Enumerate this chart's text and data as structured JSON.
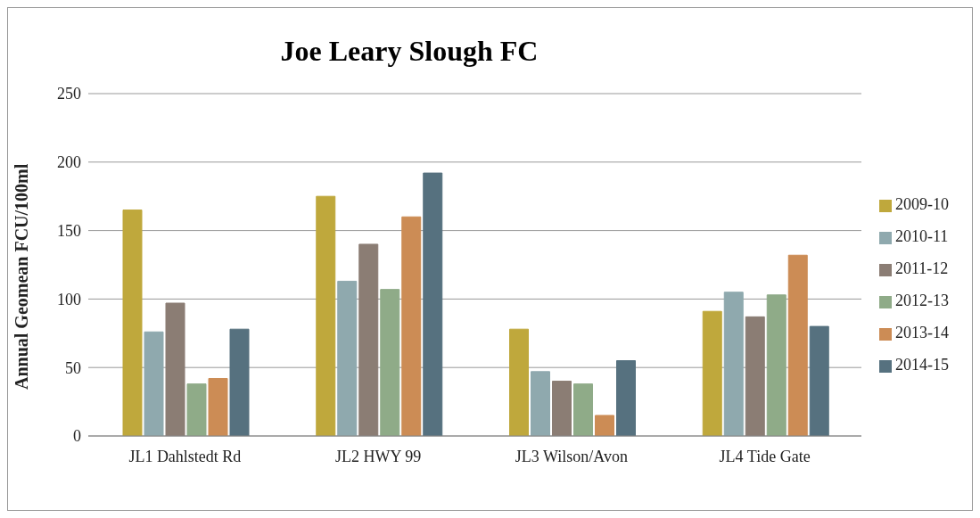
{
  "chart_data": {
    "type": "bar",
    "title": "Joe Leary Slough FC",
    "ylabel": "Annual Geomean FCU/100ml",
    "categories": [
      "JL1 Dahlstedt Rd",
      "JL2 HWY 99",
      "JL3 Wilson/Avon",
      "JL4 Tide Gate"
    ],
    "series": [
      {
        "name": "2009-10",
        "color": "#bfa83c",
        "values": [
          165,
          175,
          78,
          91
        ]
      },
      {
        "name": "2010-11",
        "color": "#8fa9ae",
        "values": [
          76,
          113,
          47,
          105
        ]
      },
      {
        "name": "2011-12",
        "color": "#8b7d74",
        "values": [
          97,
          140,
          40,
          87
        ]
      },
      {
        "name": "2012-13",
        "color": "#8fab88",
        "values": [
          38,
          107,
          38,
          103
        ]
      },
      {
        "name": "2013-14",
        "color": "#cc8c55",
        "values": [
          42,
          160,
          15,
          132
        ]
      },
      {
        "name": "2014-15",
        "color": "#56717f",
        "values": [
          78,
          192,
          55,
          80
        ]
      }
    ],
    "ylim": [
      0,
      250
    ],
    "yticks": [
      0,
      50,
      100,
      150,
      200,
      250
    ],
    "grid": "y",
    "legend": "right"
  }
}
